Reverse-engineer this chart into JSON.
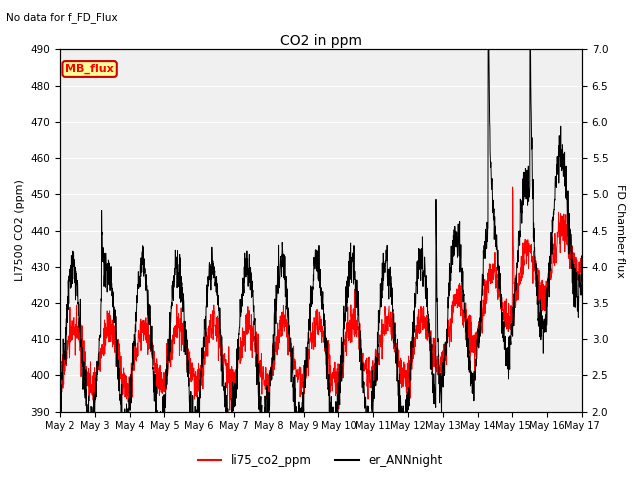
{
  "title": "CO2 in ppm",
  "subtitle": "No data for f_FD_Flux",
  "ylabel_left": "LI7500 CO2 (ppm)",
  "ylabel_right": "FD Chamber flux",
  "ylim_left": [
    390,
    490
  ],
  "ylim_right": [
    2.0,
    7.0
  ],
  "yticks_left": [
    390,
    400,
    410,
    420,
    430,
    440,
    450,
    460,
    470,
    480,
    490
  ],
  "yticks_right": [
    2.0,
    2.5,
    3.0,
    3.5,
    4.0,
    4.5,
    5.0,
    5.5,
    6.0,
    6.5,
    7.0
  ],
  "xtick_labels": [
    "May 2",
    "May 3",
    "May 4",
    "May 5",
    "May 6",
    "May 7",
    "May 8",
    "May 9",
    "May 10",
    "May 11",
    "May 12",
    "May 13",
    "May 14",
    "May 15",
    "May 16",
    "May 17"
  ],
  "legend_label_red": "li75_co2_ppm",
  "legend_label_black": "er_ANNnight",
  "mb_flux_label": "MB_flux",
  "color_red": "#ff0000",
  "color_black": "#000000",
  "color_mb_flux_bg": "#ffff99",
  "color_mb_flux_border": "#cc0000",
  "plot_bg_color": "#ebebeb",
  "stripe_color": "#e0e0e0"
}
